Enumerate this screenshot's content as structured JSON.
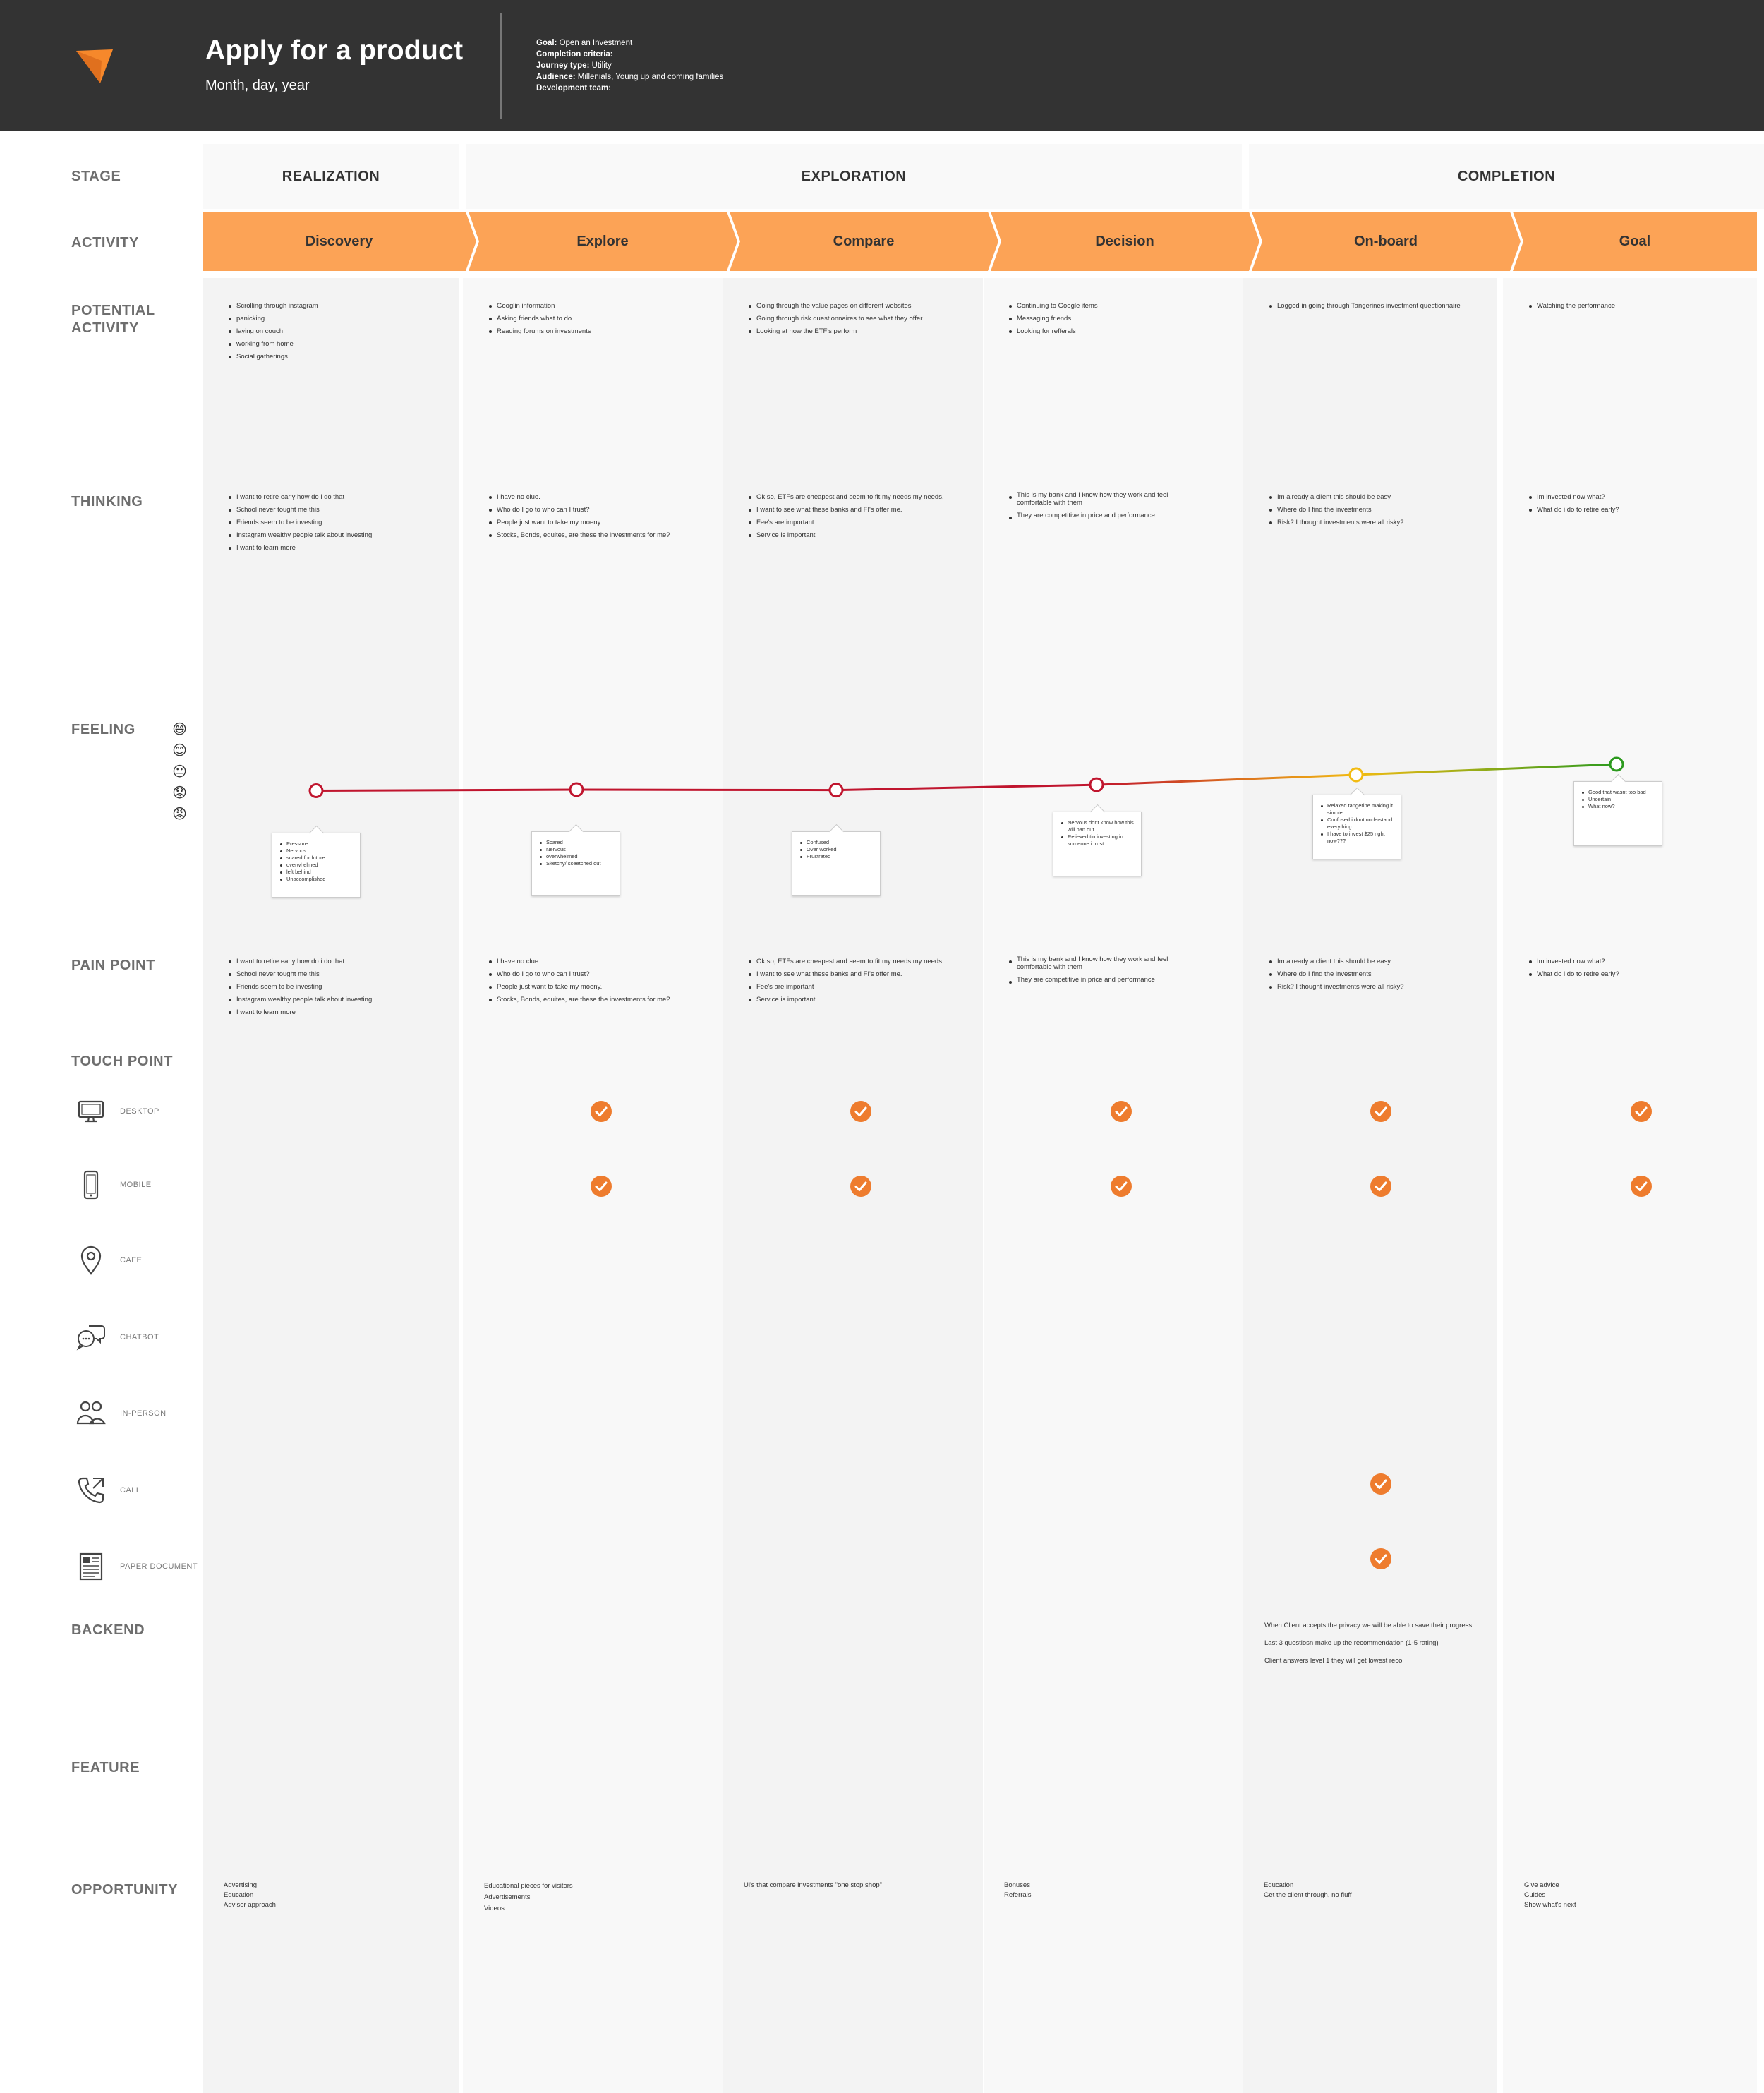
{
  "header": {
    "title": "Apply for a product",
    "subtitle": "Month, day, year",
    "meta": [
      {
        "key": "Goal:",
        "value": "Open an Investment"
      },
      {
        "key": "Completion criteria:",
        "value": ""
      },
      {
        "key": "Journey type:",
        "value": "Utility"
      },
      {
        "key": "Audience:",
        "value": "Millenials, Young up and coming families"
      },
      {
        "key": "Development team:",
        "value": ""
      }
    ]
  },
  "row_labels": {
    "stage": "STAGE",
    "activity": "ACTIVITY",
    "potential": "POTENTIAL ACTIVITY",
    "thinking": "THINKING",
    "feeling": "FEELING",
    "pain": "PAIN POINT",
    "touch": "TOUCH POINT",
    "backend": "BACKEND",
    "feature": "FEATURE",
    "opportunity": "OPPORTUNITY"
  },
  "stages": [
    "REALIZATION",
    "EXPLORATION",
    "COMPLETION"
  ],
  "activities": [
    "Discovery",
    "Explore",
    "Compare",
    "Decision",
    "On-board",
    "Goal"
  ],
  "columns": [
    {
      "potential": [
        "Scrolling through instagram",
        "panicking",
        "laying on couch",
        "working from home",
        "Social gatherings"
      ],
      "thinking": [
        "I want to retire early how do i do that",
        "School never tought me this",
        "Friends seem to be investing",
        "Instagram wealthy people talk about investing",
        "I want to learn more"
      ],
      "feeling": [
        "Pressure",
        "Nervous",
        "scared for future",
        "overwhelmed",
        "left behind",
        "Unaccomplished"
      ],
      "pain": [
        "I want to retire early how do i do that",
        "School never tought me this",
        "Friends seem to be investing",
        "Instagram wealthy people talk about investing",
        "I want to learn more"
      ],
      "backend": [],
      "opportunity": [
        "Advertising",
        "Education",
        "Advisor approach"
      ]
    },
    {
      "potential": [
        "Googlin information",
        "Asking friends what to do",
        "Reading forums on investments"
      ],
      "thinking": [
        "I have no clue.",
        "Who do I go to who can I trust?",
        "People just want to take my moeny.",
        "Stocks, Bonds, equites, are these the investments for me?"
      ],
      "feeling": [
        "Scared",
        "Nervous",
        "overwhelmed",
        "Sketchy/ sceetched out"
      ],
      "pain": [
        "I have no clue.",
        "Who do I go to who can I trust?",
        "People just want to take my moeny.",
        "Stocks, Bonds, equites, are these the investments for me?"
      ],
      "backend": [],
      "opportunity": [
        "Educational pieces for visitors",
        "Advertisements",
        "Videos"
      ]
    },
    {
      "potential": [
        "Going through the value pages on different websites",
        "Going through risk questionnaires to see what they offer",
        "Looking at how the ETF's perform"
      ],
      "thinking": [
        "Ok so, ETFs are cheapest and seem to fit my needs my needs.",
        "I want to see what these banks and FI's offer me.",
        "Fee's are important",
        "Service is important"
      ],
      "feeling": [
        "Confused",
        "Over worked",
        "Frustrated"
      ],
      "pain": [
        "Ok so, ETFs are cheapest and seem to fit my needs my needs.",
        "I want to see what these banks and FI's offer me.",
        "Fee's are important",
        "Service is important"
      ],
      "backend": [],
      "opportunity": [
        "Ui's that compare investments \"one stop shop\""
      ]
    },
    {
      "potential": [
        "Continuing to Google items",
        "Messaging friends",
        "Looking for refferals"
      ],
      "thinking": [
        "This is my bank and I know how they work and feel comfortable with them",
        "They are competitive in price and performance"
      ],
      "feeling": [
        "Nervous dont know how this will pan out",
        "Relieved tin investing in someone i trust"
      ],
      "pain": [
        "This is my bank and I know how they work and feel comfortable with them",
        "They are competitive in price and performance"
      ],
      "backend": [],
      "opportunity": [
        "Bonuses",
        "Referrals"
      ]
    },
    {
      "potential": [
        "Logged in going through Tangerines investment questionnaire"
      ],
      "thinking": [
        "Im already a client this should be easy",
        "Where do I find the investments",
        "Risk? I thought investments were all risky?"
      ],
      "feeling": [
        "Relaxed tangerine making it simple",
        "Confused i dont understand everything",
        "I have to invest $25 right now???"
      ],
      "pain": [
        "Im already a client this should be easy",
        "Where do I find the investments",
        "Risk? I thought investments were all risky?"
      ],
      "backend": [
        "When Client accepts the privacy we will be able to save their progress",
        "Last 3 questiosn make up the recommendation (1-5 rating)",
        "Client answers level 1 they will get lowest reco"
      ],
      "opportunity": [
        "Education",
        "Get the client through, no fluff"
      ]
    },
    {
      "potential": [
        "Watching the performance"
      ],
      "thinking": [
        "Im invested now what?",
        "What do i do to retire early?"
      ],
      "feeling": [
        "Good that wasnt too bad",
        "Uncertain",
        "What now?"
      ],
      "pain": [
        "Im invested now what?",
        "What do i do to retire early?"
      ],
      "backend": [],
      "opportunity": [
        "Give advice",
        "Guides",
        "Show what's next"
      ]
    }
  ],
  "feeling_scale": [
    "very-happy-face-icon",
    "happy-face-icon",
    "neutral-face-icon",
    "sad-face-icon",
    "angry-face-icon"
  ],
  "chart_data": {
    "type": "line",
    "categories": [
      "Discovery",
      "Explore",
      "Compare",
      "Decision",
      "On-board",
      "Goal"
    ],
    "y_scale": [
      "angry",
      "sad",
      "neutral",
      "happy",
      "very happy"
    ],
    "ylim": [
      1,
      5
    ],
    "values": [
      2.05,
      2.1,
      2.08,
      2.33,
      2.8,
      3.3
    ],
    "point_colors": [
      "#c0152e",
      "#c0152e",
      "#c0152e",
      "#c0152e",
      "#f2bb12",
      "#2c9a1e"
    ]
  },
  "touchpoints": [
    {
      "label": "DESKTOP",
      "icon": "desktop-icon",
      "active": [
        false,
        true,
        true,
        true,
        true,
        true
      ]
    },
    {
      "label": "MOBILE",
      "icon": "mobile-icon",
      "active": [
        false,
        true,
        true,
        true,
        true,
        true
      ]
    },
    {
      "label": "CAFE",
      "icon": "location-pin-icon",
      "active": [
        false,
        false,
        false,
        false,
        false,
        false
      ]
    },
    {
      "label": "CHATBOT",
      "icon": "chat-bubbles-icon",
      "active": [
        false,
        false,
        false,
        false,
        false,
        false
      ]
    },
    {
      "label": "IN-PERSON",
      "icon": "people-icon",
      "active": [
        false,
        false,
        false,
        false,
        false,
        false
      ]
    },
    {
      "label": "CALL",
      "icon": "phone-call-icon",
      "active": [
        false,
        false,
        false,
        false,
        true,
        false
      ]
    },
    {
      "label": "PAPER DOCUMENT",
      "icon": "paper-document-icon",
      "active": [
        false,
        false,
        false,
        false,
        true,
        false
      ]
    }
  ],
  "colors": {
    "header_bg": "#333333",
    "accent": "#fca356",
    "check": "#ee7c2e",
    "bad": "#c0152e",
    "mid": "#f2bb12",
    "good": "#2c9a1e"
  }
}
